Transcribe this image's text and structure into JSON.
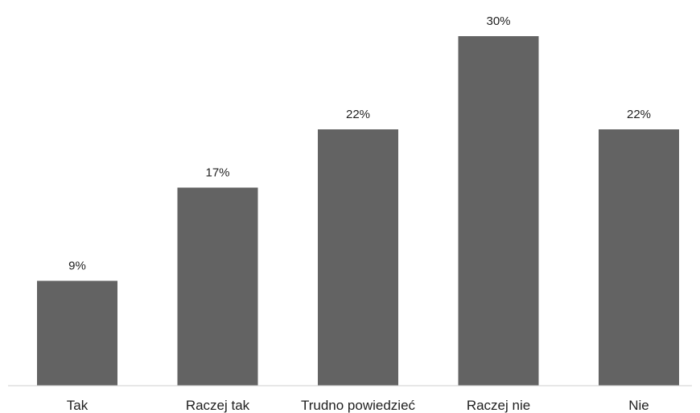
{
  "chart_data": {
    "type": "bar",
    "title": "",
    "xlabel": "",
    "ylabel": "",
    "categories": [
      "Tak",
      "Raczej tak",
      "Trudno powiedzieć",
      "Raczej nie",
      "Nie"
    ],
    "values": [
      9,
      17,
      22,
      30,
      22
    ],
    "data_labels": [
      "9%",
      "17%",
      "22%",
      "30%",
      "22%"
    ],
    "ylim": [
      0,
      30
    ],
    "grid": false,
    "legend": "none",
    "bar_color": "#636363",
    "axis_color": "#cfcfcf"
  }
}
